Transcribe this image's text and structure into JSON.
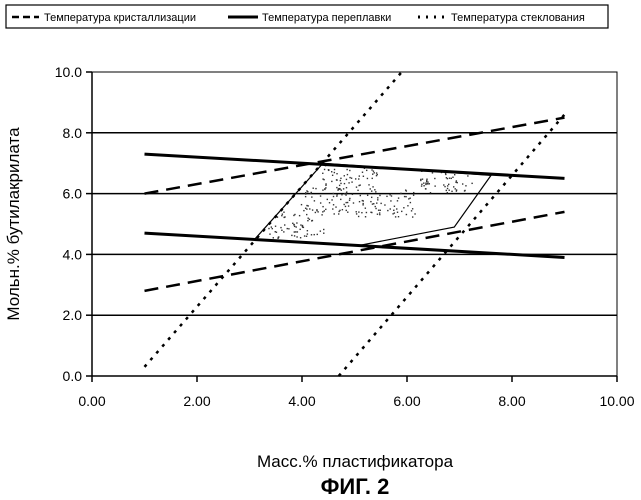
{
  "chart_data": {
    "type": "line",
    "title": "",
    "xlabel": "Масс.% пластификатора",
    "ylabel": "Мольн.% бутилакрилата",
    "xlim": [
      0,
      10
    ],
    "ylim": [
      0,
      10
    ],
    "x_ticks": [
      "0.00",
      "2.00",
      "4.00",
      "6.00",
      "8.00",
      "10.00"
    ],
    "y_ticks": [
      "0.0",
      "2.0",
      "4.0",
      "6.0",
      "8.0",
      "10.0"
    ],
    "grid": "horizontal",
    "legend_position": "top",
    "legend": [
      {
        "label": "Температура кристаллизации",
        "style": "dashed"
      },
      {
        "label": "Температура переплавки",
        "style": "solid"
      },
      {
        "label": "Температура стеклования",
        "style": "dotted"
      }
    ],
    "series": [
      {
        "name": "Температура кристаллизации",
        "style": "dashed",
        "points": [
          [
            1,
            6.0
          ],
          [
            9,
            8.5
          ]
        ]
      },
      {
        "name": "Температура кристаллизации",
        "style": "dashed",
        "points": [
          [
            1,
            2.8
          ],
          [
            9,
            5.4
          ]
        ]
      },
      {
        "name": "Температура переплавки",
        "style": "solid",
        "points": [
          [
            1,
            7.3
          ],
          [
            9,
            6.5
          ]
        ]
      },
      {
        "name": "Температура переплавки",
        "style": "solid",
        "points": [
          [
            1,
            4.7
          ],
          [
            9,
            3.9
          ]
        ]
      },
      {
        "name": "Температура стеклования",
        "style": "dotted",
        "points": [
          [
            1,
            0.3
          ],
          [
            5.9,
            10.0
          ]
        ]
      },
      {
        "name": "Температура стеклования",
        "style": "dotted",
        "points": [
          [
            4.7,
            0.0
          ],
          [
            9,
            8.6
          ]
        ]
      }
    ],
    "region": {
      "label": "",
      "vertices": [
        [
          3.1,
          4.5
        ],
        [
          4.4,
          7.0
        ],
        [
          7.6,
          6.6
        ],
        [
          6.9,
          4.9
        ],
        [
          5.1,
          4.3
        ]
      ]
    },
    "caption": "ФИГ. 2"
  }
}
